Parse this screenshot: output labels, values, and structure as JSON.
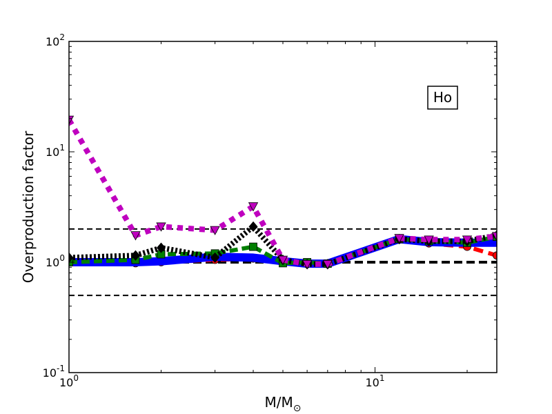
{
  "chart_data": {
    "type": "line",
    "xscale": "log",
    "yscale": "log",
    "xlim": [
      1,
      25
    ],
    "ylim": [
      0.1,
      100
    ],
    "xlabel": {
      "main": "M/M",
      "sub": "⊙"
    },
    "ylabel": "Overproduction factor",
    "x_ticks": [
      {
        "value": 1,
        "base": "10",
        "exp": "0"
      },
      {
        "value": 10,
        "base": "10",
        "exp": "1"
      }
    ],
    "y_ticks": [
      {
        "value": 0.1,
        "base": "10",
        "exp": "-1"
      },
      {
        "value": 1,
        "base": "10",
        "exp": "0"
      },
      {
        "value": 10,
        "base": "10",
        "exp": "1"
      },
      {
        "value": 100,
        "base": "10",
        "exp": "2"
      }
    ],
    "annotation": "Ho",
    "reference_lines": [
      {
        "y": 2,
        "style": "dashed",
        "color": "#000000",
        "width": 2
      },
      {
        "y": 1,
        "style": "dashed",
        "color": "#000000",
        "width": 4
      },
      {
        "y": 0.5,
        "style": "dashed",
        "color": "#000000",
        "width": 2
      }
    ],
    "series": [
      {
        "color": "#ff0000",
        "marker": "circle",
        "dash": "14,8",
        "width": 6,
        "x": [
          1,
          1.65,
          2,
          3,
          4,
          5,
          6,
          7,
          12,
          15,
          20,
          25
        ],
        "y": [
          1.0,
          0.98,
          1.0,
          1.05,
          1.08,
          1.02,
          0.96,
          0.96,
          1.6,
          1.48,
          1.38,
          1.15
        ]
      },
      {
        "color": "#0000ff",
        "marker": "none",
        "dash": "",
        "width": 12,
        "x": [
          1,
          1.65,
          2,
          3,
          4,
          5,
          6,
          7,
          12,
          15,
          20,
          25
        ],
        "y": [
          1.0,
          1.0,
          1.02,
          1.12,
          1.1,
          1.02,
          0.97,
          0.97,
          1.62,
          1.52,
          1.5,
          1.5
        ]
      },
      {
        "color": "#007f00",
        "marker": "square",
        "dash": "12,6",
        "width": 6,
        "x": [
          1,
          1.65,
          2,
          3,
          4,
          5,
          6,
          7,
          12,
          15,
          20,
          25
        ],
        "y": [
          1.0,
          1.05,
          1.18,
          1.2,
          1.38,
          0.98,
          1.0,
          0.97,
          1.62,
          1.55,
          1.5,
          1.7
        ]
      },
      {
        "color": "#000000",
        "marker": "diamond",
        "dash": "3,3",
        "width": 8,
        "x": [
          1,
          1.65,
          2,
          3,
          4,
          5,
          6,
          7,
          12,
          15,
          20,
          25
        ],
        "y": [
          1.1,
          1.15,
          1.35,
          1.1,
          2.1,
          1.05,
          0.96,
          0.96,
          1.62,
          1.55,
          1.55,
          1.75
        ]
      },
      {
        "color": "#bf00bf",
        "marker": "triangle-down",
        "dash": "8,8",
        "width": 8,
        "x": [
          1,
          1.65,
          2,
          3,
          4,
          5,
          6,
          7,
          12,
          15,
          20,
          25
        ],
        "y": [
          19.5,
          1.75,
          2.1,
          1.95,
          3.2,
          1.05,
          0.96,
          0.96,
          1.65,
          1.6,
          1.6,
          1.72
        ]
      }
    ]
  }
}
